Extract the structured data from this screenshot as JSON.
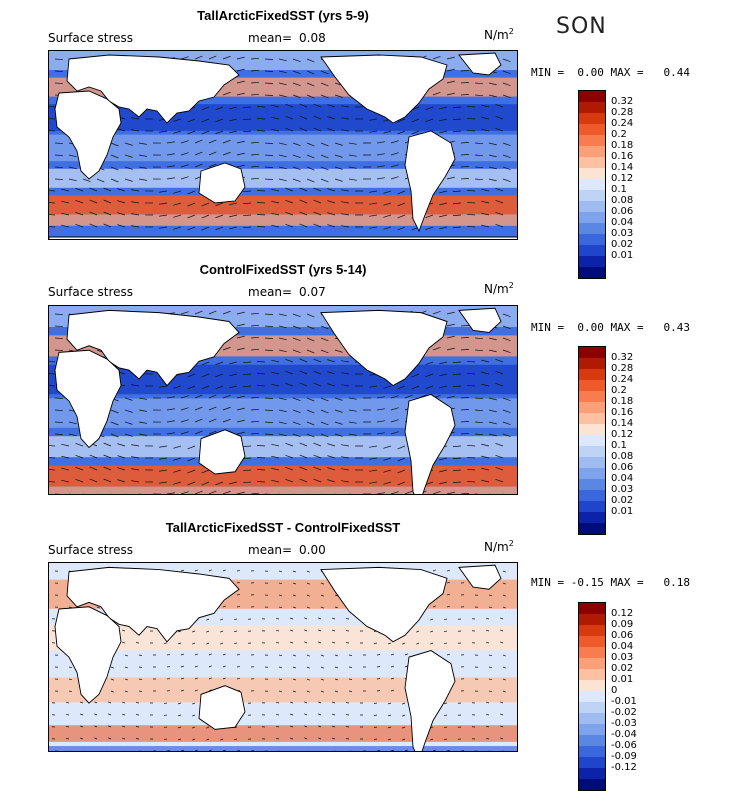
{
  "season": "SON",
  "panels": [
    {
      "title": "TallArcticFixedSST (yrs 5-9)",
      "field_label": "Surface stress",
      "mean_label": "mean=",
      "mean_value": "0.08",
      "unit": "N/m",
      "unit_exp": "2",
      "min_label": "MIN =",
      "min_value": "0.00",
      "max_label": "MAX =",
      "max_value": "0.44",
      "scale_ticks": [
        "0.32",
        "0.28",
        "0.24",
        "0.2",
        "0.18",
        "0.16",
        "0.14",
        "0.12",
        "0.1",
        "0.08",
        "0.06",
        "0.04",
        "0.03",
        "0.02",
        "0.01"
      ],
      "scale_colors": [
        "#8b0000",
        "#b01a00",
        "#d83a10",
        "#ee5a2a",
        "#f77d4e",
        "#fa9f78",
        "#fcc0a2",
        "#fde3d3",
        "#dce8fb",
        "#bfd3f6",
        "#9fbcf1",
        "#7ea3ec",
        "#5a86e4",
        "#3a67dc",
        "#1e45cc",
        "#0c22a8",
        "#000c7a"
      ]
    },
    {
      "title": "ControlFixedSST (yrs 5-14)",
      "field_label": "Surface stress",
      "mean_label": "mean=",
      "mean_value": "0.07",
      "unit": "N/m",
      "unit_exp": "2",
      "min_label": "MIN =",
      "min_value": "0.00",
      "max_label": "MAX =",
      "max_value": "0.43",
      "scale_ticks": [
        "0.32",
        "0.28",
        "0.24",
        "0.2",
        "0.18",
        "0.16",
        "0.14",
        "0.12",
        "0.1",
        "0.08",
        "0.06",
        "0.04",
        "0.03",
        "0.02",
        "0.01"
      ],
      "scale_colors": [
        "#8b0000",
        "#b01a00",
        "#d83a10",
        "#ee5a2a",
        "#f77d4e",
        "#fa9f78",
        "#fcc0a2",
        "#fde3d3",
        "#dce8fb",
        "#bfd3f6",
        "#9fbcf1",
        "#7ea3ec",
        "#5a86e4",
        "#3a67dc",
        "#1e45cc",
        "#0c22a8",
        "#000c7a"
      ]
    },
    {
      "title": "TallArcticFixedSST - ControlFixedSST",
      "field_label": "Surface stress",
      "mean_label": "mean=",
      "mean_value": "0.00",
      "unit": "N/m",
      "unit_exp": "2",
      "min_label": "MIN =",
      "min_value": "-0.15",
      "max_label": "MAX =",
      "max_value": "0.18",
      "scale_ticks": [
        "0.12",
        "0.09",
        "0.06",
        "0.04",
        "0.03",
        "0.02",
        "0.01",
        "0",
        "-0.01",
        "-0.02",
        "-0.03",
        "-0.04",
        "-0.06",
        "-0.09",
        "-0.12"
      ],
      "scale_colors": [
        "#8b0000",
        "#b01a00",
        "#d83a10",
        "#ee5a2a",
        "#f77d4e",
        "#fa9f78",
        "#fcc0a2",
        "#fde3d3",
        "#dce8fb",
        "#bfd3f6",
        "#9fbcf1",
        "#7ea3ec",
        "#5a86e4",
        "#3a67dc",
        "#1e45cc",
        "#0c22a8",
        "#000c7a"
      ]
    }
  ]
}
